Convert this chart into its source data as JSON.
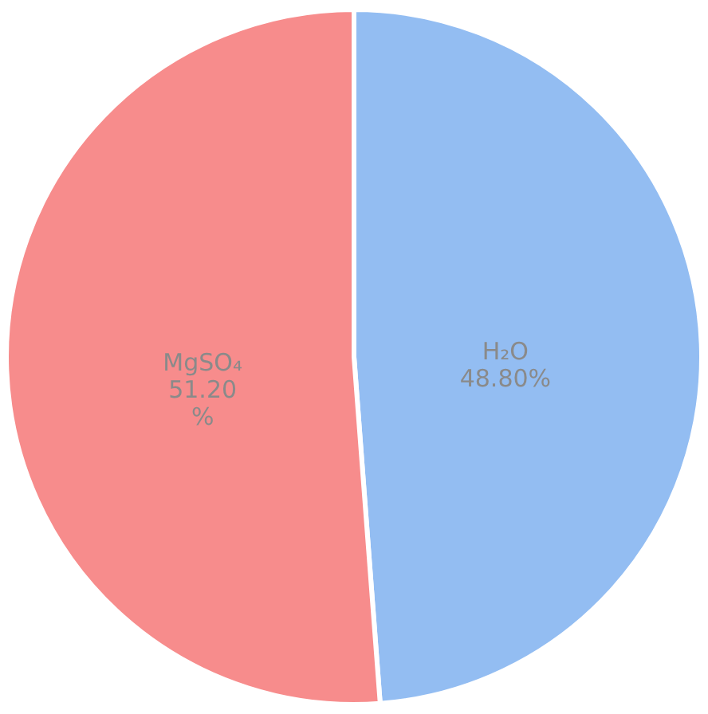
{
  "chart_data": {
    "type": "pie",
    "categories": [
      "H₂O",
      "MgSO₄"
    ],
    "values": [
      48.8,
      51.2
    ],
    "colors": [
      "#93bdf2",
      "#f78c8c"
    ],
    "value_labels": [
      "48.80%",
      "51.20\n%"
    ],
    "legend": false
  }
}
